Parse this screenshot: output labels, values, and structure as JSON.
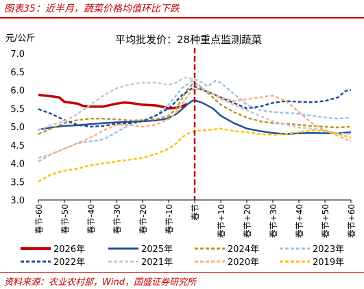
{
  "figure_title": "图表35：近半月，蔬菜价格均值环比下跌",
  "source": "资料来源：农业农村部，Wind，国盛证券研究所",
  "colors": {
    "accent": "#c00000",
    "2026年": "#c00000",
    "2025年": "#1f4e99",
    "2024年": "#b8962e",
    "2023年": "#9dc3e6",
    "2022年": "#1f4e99",
    "2021年": "#c8c8c8",
    "2020年": "#f4b183",
    "2019年": "#ffc000",
    "divider": "#c00000"
  },
  "chart_data": {
    "type": "line",
    "title": "平均批发价：28种重点监测蔬菜",
    "ylabel": "元/公斤",
    "ylim": [
      3.0,
      7.0
    ],
    "yticks": [
      "3.0",
      "3.5",
      "4.0",
      "4.5",
      "5.0",
      "5.5",
      "6.0",
      "6.5",
      "7.0"
    ],
    "xlim": [
      -60,
      60
    ],
    "xticks": [
      {
        "x": -60,
        "label": "春节-60"
      },
      {
        "x": -50,
        "label": "春节-50"
      },
      {
        "x": -40,
        "label": "春节-40"
      },
      {
        "x": -30,
        "label": "春节-30"
      },
      {
        "x": -20,
        "label": "春节-20"
      },
      {
        "x": -10,
        "label": "春节-10"
      },
      {
        "x": 0,
        "label": "春节"
      },
      {
        "x": 10,
        "label": "春节+10"
      },
      {
        "x": 20,
        "label": "春节+20"
      },
      {
        "x": 30,
        "label": "春节+30"
      },
      {
        "x": 40,
        "label": "春节+40"
      },
      {
        "x": 50,
        "label": "春节+50"
      },
      {
        "x": 60,
        "label": "春节+60"
      }
    ],
    "vline_x": 0,
    "legend_position": "bottom",
    "series": [
      {
        "name": "2026年",
        "color": "#c00000",
        "style": "solid",
        "width": 3.5,
        "x": [
          -60,
          -55,
          -52,
          -50,
          -45,
          -43,
          -40,
          -35,
          -30,
          -27,
          -25,
          -20,
          -15,
          -12,
          -10,
          -7,
          -5,
          -3
        ],
        "y": [
          5.87,
          5.83,
          5.8,
          5.68,
          5.63,
          5.57,
          5.55,
          5.55,
          5.63,
          5.66,
          5.65,
          5.6,
          5.58,
          5.54,
          5.5,
          5.52,
          5.55,
          5.62
        ]
      },
      {
        "name": "2025年",
        "color": "#1f4e99",
        "style": "solid",
        "width": 2.5,
        "x": [
          -60,
          -55,
          -50,
          -45,
          -40,
          -35,
          -30,
          -25,
          -20,
          -15,
          -12,
          -10,
          -7,
          -5,
          -3,
          -1,
          0,
          3,
          7,
          10,
          15,
          20,
          25,
          30,
          35,
          40,
          45,
          50,
          55,
          60
        ],
        "y": [
          4.92,
          4.98,
          5.02,
          5.04,
          5.07,
          5.1,
          5.12,
          5.13,
          5.15,
          5.17,
          5.2,
          5.24,
          5.35,
          5.47,
          5.6,
          5.7,
          5.72,
          5.65,
          5.5,
          5.3,
          5.1,
          4.95,
          4.88,
          4.83,
          4.8,
          4.82,
          4.83,
          4.82,
          4.82,
          4.85
        ]
      },
      {
        "name": "2024年",
        "color": "#b8962e",
        "style": "dashed",
        "width": 2.5,
        "x": [
          -60,
          -55,
          -50,
          -45,
          -40,
          -35,
          -30,
          -25,
          -20,
          -15,
          -10,
          -7,
          -5,
          -3,
          -1,
          0,
          3,
          7,
          10,
          15,
          20,
          25,
          30,
          35,
          40,
          45,
          50,
          55,
          60
        ],
        "y": [
          4.8,
          4.95,
          5.1,
          5.18,
          5.22,
          5.22,
          5.2,
          5.17,
          5.18,
          5.2,
          5.3,
          5.5,
          5.75,
          6.0,
          6.15,
          6.2,
          6.05,
          5.8,
          5.6,
          5.4,
          5.25,
          5.15,
          5.1,
          5.08,
          5.05,
          5.02,
          5.0,
          4.98,
          5.0
        ]
      },
      {
        "name": "2023年",
        "color": "#9dc3e6",
        "style": "dashed",
        "width": 2.5,
        "x": [
          -60,
          -55,
          -50,
          -45,
          -40,
          -35,
          -30,
          -25,
          -20,
          -15,
          -10,
          -5,
          -2,
          0,
          3,
          5,
          8,
          10,
          15,
          20,
          25,
          30,
          35,
          40,
          45,
          50,
          55,
          60
        ],
        "y": [
          4.05,
          4.25,
          4.4,
          4.55,
          4.6,
          4.65,
          4.85,
          5.05,
          5.15,
          5.3,
          5.6,
          6.05,
          6.2,
          6.3,
          6.2,
          6.1,
          6.25,
          6.2,
          5.9,
          5.6,
          5.45,
          5.4,
          5.38,
          5.35,
          5.3,
          5.25,
          5.22,
          5.25
        ]
      },
      {
        "name": "2022年",
        "color": "#1f4e99",
        "style": "dashed",
        "width": 2.5,
        "x": [
          -60,
          -55,
          -50,
          -45,
          -40,
          -35,
          -30,
          -25,
          -20,
          -15,
          -10,
          -7,
          -5,
          -3,
          -1,
          0,
          3,
          7,
          10,
          15,
          20,
          25,
          30,
          35,
          40,
          45,
          50,
          55,
          58,
          60
        ],
        "y": [
          5.48,
          5.35,
          5.18,
          5.05,
          5.0,
          5.02,
          5.08,
          5.1,
          5.15,
          5.3,
          5.5,
          5.7,
          5.85,
          5.95,
          6.05,
          6.1,
          6.0,
          5.9,
          5.8,
          5.65,
          5.5,
          5.55,
          5.65,
          5.7,
          5.68,
          5.67,
          5.7,
          5.8,
          5.98,
          6.0
        ]
      },
      {
        "name": "2021年",
        "color": "#c8c8c8",
        "style": "dashed",
        "width": 2.5,
        "x": [
          -60,
          -55,
          -50,
          -45,
          -40,
          -35,
          -30,
          -25,
          -20,
          -15,
          -10,
          -7,
          -5,
          -3,
          -1,
          0,
          3,
          7,
          10,
          15,
          20,
          25,
          30,
          35,
          40,
          45,
          50,
          55,
          60
        ],
        "y": [
          4.9,
          5.05,
          5.15,
          5.35,
          5.6,
          5.85,
          6.05,
          6.15,
          6.2,
          6.2,
          6.15,
          6.2,
          6.3,
          6.35,
          6.3,
          6.2,
          6.05,
          5.9,
          5.75,
          5.6,
          5.45,
          5.3,
          5.15,
          5.05,
          4.98,
          4.95,
          4.9,
          4.82,
          4.8
        ]
      },
      {
        "name": "2020年",
        "color": "#f4b183",
        "style": "dashed",
        "width": 2.5,
        "x": [
          -60,
          -55,
          -50,
          -45,
          -40,
          -35,
          -30,
          -25,
          -20,
          -15,
          -10,
          -7,
          -5,
          -3,
          -1,
          0,
          3,
          7,
          10,
          15,
          20,
          25,
          30,
          35,
          40,
          45,
          50,
          55,
          60
        ],
        "y": [
          4.15,
          4.25,
          4.4,
          4.55,
          4.7,
          4.9,
          5.05,
          5.05,
          5.0,
          5.05,
          5.2,
          5.4,
          5.6,
          5.8,
          6.0,
          6.05,
          6.0,
          5.9,
          5.8,
          5.7,
          5.75,
          5.8,
          5.85,
          5.7,
          5.4,
          5.1,
          4.9,
          4.75,
          4.6
        ]
      },
      {
        "name": "2019年",
        "color": "#ffc000",
        "style": "dashed",
        "width": 2.5,
        "x": [
          -60,
          -55,
          -50,
          -45,
          -40,
          -35,
          -30,
          -25,
          -20,
          -15,
          -10,
          -7,
          -5,
          -3,
          -1,
          0,
          3,
          7,
          10,
          15,
          20,
          25,
          30,
          35,
          40,
          45,
          50,
          55,
          60
        ],
        "y": [
          3.5,
          3.7,
          3.8,
          3.85,
          3.95,
          4.0,
          4.05,
          4.1,
          4.15,
          4.25,
          4.4,
          4.55,
          4.7,
          4.8,
          4.85,
          4.88,
          4.9,
          4.92,
          4.95,
          4.88,
          4.85,
          4.8,
          4.78,
          4.8,
          4.85,
          4.9,
          4.88,
          4.8,
          4.7
        ]
      }
    ]
  }
}
